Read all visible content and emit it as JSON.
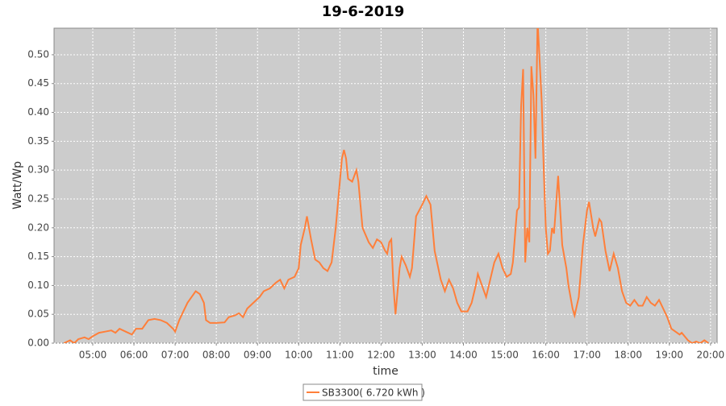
{
  "chart_data": {
    "type": "line",
    "title": "19-6-2019",
    "x_label": "time",
    "y_label": "Watt/Wp",
    "x": [
      4.3,
      4.45,
      4.55,
      4.65,
      4.8,
      4.9,
      5.0,
      5.15,
      5.3,
      5.45,
      5.55,
      5.65,
      5.8,
      5.95,
      6.05,
      6.2,
      6.35,
      6.5,
      6.65,
      6.8,
      6.95,
      7.0,
      7.1,
      7.2,
      7.3,
      7.4,
      7.5,
      7.6,
      7.7,
      7.75,
      7.85,
      8.0,
      8.2,
      8.3,
      8.45,
      8.55,
      8.65,
      8.75,
      8.9,
      9.05,
      9.15,
      9.3,
      9.45,
      9.55,
      9.65,
      9.75,
      9.9,
      10.0,
      10.05,
      10.15,
      10.2,
      10.3,
      10.4,
      10.5,
      10.6,
      10.7,
      10.8,
      10.9,
      11.0,
      11.05,
      11.1,
      11.15,
      11.2,
      11.3,
      11.4,
      11.45,
      11.55,
      11.7,
      11.8,
      11.9,
      12.0,
      12.1,
      12.15,
      12.2,
      12.25,
      12.3,
      12.35,
      12.45,
      12.5,
      12.6,
      12.7,
      12.75,
      12.85,
      13.0,
      13.1,
      13.2,
      13.3,
      13.45,
      13.55,
      13.65,
      13.75,
      13.85,
      13.95,
      14.1,
      14.2,
      14.3,
      14.35,
      14.45,
      14.55,
      14.65,
      14.75,
      14.85,
      14.95,
      15.05,
      15.15,
      15.2,
      15.3,
      15.35,
      15.4,
      15.45,
      15.5,
      15.55,
      15.6,
      15.65,
      15.7,
      15.75,
      15.8,
      15.9,
      15.95,
      16.0,
      16.05,
      16.1,
      16.15,
      16.2,
      16.3,
      16.35,
      16.4,
      16.5,
      16.55,
      16.65,
      16.7,
      16.8,
      16.9,
      17.0,
      17.05,
      17.15,
      17.2,
      17.3,
      17.35,
      17.45,
      17.55,
      17.65,
      17.75,
      17.85,
      17.95,
      18.05,
      18.15,
      18.25,
      18.35,
      18.45,
      18.55,
      18.65,
      18.75,
      18.85,
      18.95,
      19.05,
      19.15,
      19.25,
      19.3,
      19.45,
      19.55,
      19.65,
      19.75,
      19.85,
      19.95
    ],
    "series": [
      {
        "name": "SB3300( 6.720 kWh )",
        "color": "#ff7f3a",
        "values": [
          0.0,
          0.005,
          0.0,
          0.007,
          0.01,
          0.007,
          0.012,
          0.018,
          0.02,
          0.022,
          0.018,
          0.025,
          0.02,
          0.015,
          0.025,
          0.025,
          0.04,
          0.042,
          0.04,
          0.035,
          0.025,
          0.02,
          0.04,
          0.055,
          0.07,
          0.08,
          0.09,
          0.085,
          0.07,
          0.04,
          0.035,
          0.035,
          0.036,
          0.045,
          0.048,
          0.052,
          0.045,
          0.06,
          0.07,
          0.08,
          0.09,
          0.095,
          0.105,
          0.11,
          0.095,
          0.11,
          0.115,
          0.13,
          0.17,
          0.2,
          0.22,
          0.18,
          0.145,
          0.14,
          0.13,
          0.125,
          0.14,
          0.2,
          0.28,
          0.32,
          0.335,
          0.32,
          0.285,
          0.28,
          0.3,
          0.28,
          0.2,
          0.175,
          0.165,
          0.18,
          0.175,
          0.16,
          0.155,
          0.175,
          0.18,
          0.1,
          0.05,
          0.13,
          0.15,
          0.135,
          0.115,
          0.13,
          0.22,
          0.24,
          0.255,
          0.24,
          0.16,
          0.11,
          0.09,
          0.11,
          0.095,
          0.07,
          0.055,
          0.055,
          0.07,
          0.1,
          0.12,
          0.1,
          0.08,
          0.11,
          0.14,
          0.155,
          0.13,
          0.115,
          0.12,
          0.14,
          0.23,
          0.235,
          0.41,
          0.475,
          0.14,
          0.2,
          0.175,
          0.48,
          0.43,
          0.32,
          0.56,
          0.42,
          0.3,
          0.2,
          0.155,
          0.16,
          0.2,
          0.19,
          0.29,
          0.23,
          0.17,
          0.13,
          0.1,
          0.06,
          0.048,
          0.08,
          0.17,
          0.23,
          0.245,
          0.2,
          0.185,
          0.215,
          0.21,
          0.16,
          0.125,
          0.155,
          0.13,
          0.09,
          0.07,
          0.065,
          0.075,
          0.065,
          0.065,
          0.08,
          0.07,
          0.065,
          0.075,
          0.06,
          0.045,
          0.025,
          0.02,
          0.015,
          0.018,
          0.005,
          0.0,
          0.003,
          0.0,
          0.005,
          0.0
        ]
      }
    ],
    "xlim": [
      4.06,
      20.16
    ],
    "xticks": [
      {
        "value": 5,
        "label": "05:00"
      },
      {
        "value": 6,
        "label": "06:00"
      },
      {
        "value": 7,
        "label": "07:00"
      },
      {
        "value": 8,
        "label": "08:00"
      },
      {
        "value": 9,
        "label": "09:00"
      },
      {
        "value": 10,
        "label": "10:00"
      },
      {
        "value": 11,
        "label": "11:00"
      },
      {
        "value": 12,
        "label": "12:00"
      },
      {
        "value": 13,
        "label": "13:00"
      },
      {
        "value": 14,
        "label": "14:00"
      },
      {
        "value": 15,
        "label": "15:00"
      },
      {
        "value": 16,
        "label": "16:00"
      },
      {
        "value": 17,
        "label": "17:00"
      },
      {
        "value": 18,
        "label": "18:00"
      },
      {
        "value": 19,
        "label": "19:00"
      },
      {
        "value": 20,
        "label": "20:00"
      }
    ],
    "ylim": [
      0,
      0.546
    ],
    "yticks": [
      {
        "value": 0,
        "label": "0.00"
      },
      {
        "value": 0.05,
        "label": "0.05"
      },
      {
        "value": 0.1,
        "label": "0.10"
      },
      {
        "value": 0.15,
        "label": "0.15"
      },
      {
        "value": 0.2,
        "label": "0.20"
      },
      {
        "value": 0.25,
        "label": "0.25"
      },
      {
        "value": 0.3,
        "label": "0.30"
      },
      {
        "value": 0.35,
        "label": "0.35"
      },
      {
        "value": 0.4,
        "label": "0.40"
      },
      {
        "value": 0.45,
        "label": "0.45"
      },
      {
        "value": 0.5,
        "label": "0.50"
      }
    ],
    "grid": true,
    "legend": "bottom"
  }
}
